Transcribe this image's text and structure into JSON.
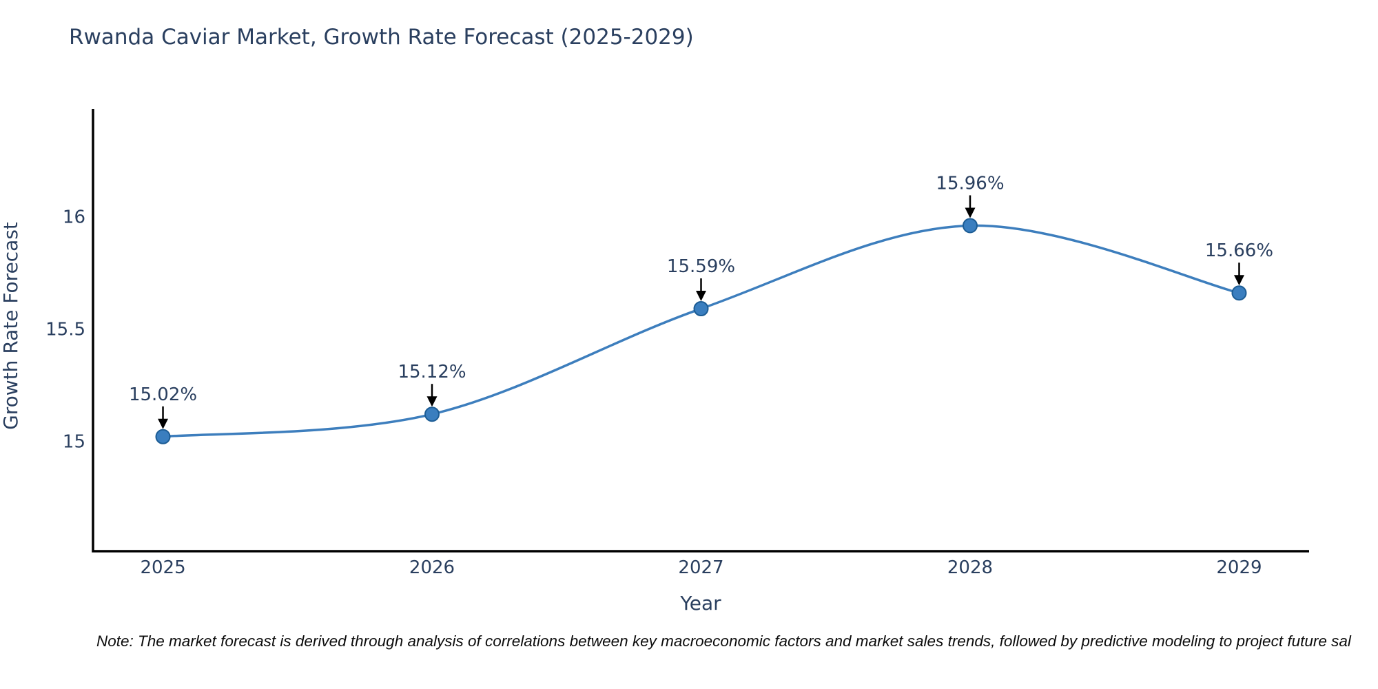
{
  "title": "Rwanda Caviar Market, Growth Rate Forecast (2025-2029)",
  "note": "Note: The market forecast is derived through analysis of correlations between key macroeconomic factors and market sales trends, followed by predictive modeling to project future sal",
  "chart_data": {
    "type": "line",
    "title": "Rwanda Caviar Market, Growth Rate Forecast (2025-2029)",
    "xlabel": "Year",
    "ylabel": "Growth Rate Forecast",
    "x": [
      2025,
      2026,
      2027,
      2028,
      2029
    ],
    "values": [
      15.02,
      15.12,
      15.59,
      15.96,
      15.66
    ],
    "point_labels": [
      "15.02%",
      "15.12%",
      "15.59%",
      "15.96%",
      "15.66%"
    ],
    "xtick_labels": [
      "2025",
      "2026",
      "2027",
      "2028",
      "2029"
    ],
    "yticks": [
      15,
      15.5,
      16
    ],
    "ytick_labels": [
      "15",
      "15.5",
      "16"
    ],
    "xlim": [
      2024.74,
      2029.26
    ],
    "ylim": [
      14.51,
      16.48
    ],
    "grid": false,
    "legend": "none",
    "line_shape": "spline",
    "colors": {
      "line": "#3d7ebd",
      "marker_fill": "#3a7ebf",
      "marker_edge": "#1c5c94",
      "axis": "#000000",
      "text": "#2a3f5f",
      "annotation_arrow": "#000000"
    }
  }
}
